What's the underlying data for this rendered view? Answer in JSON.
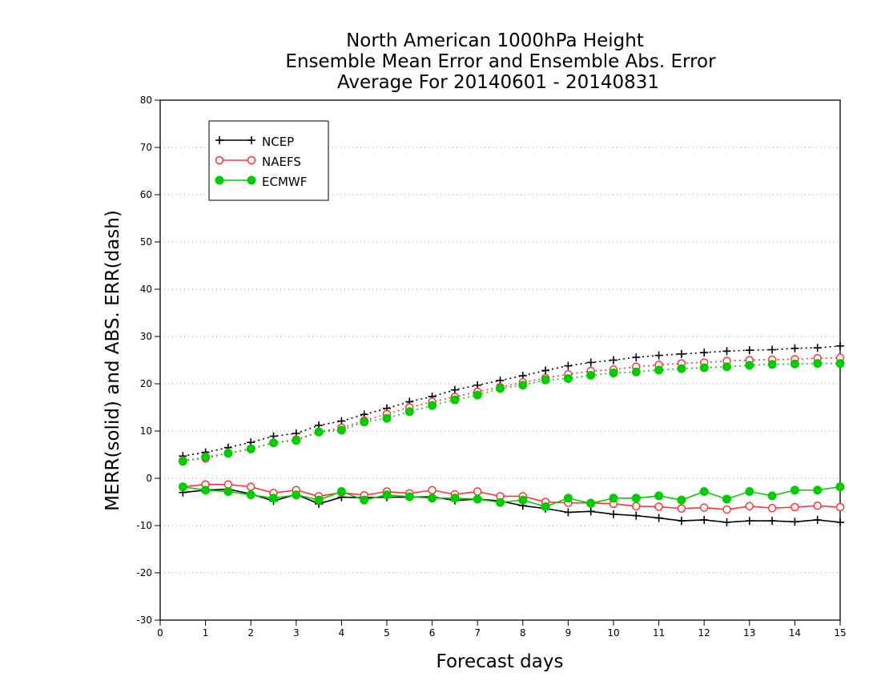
{
  "chart_data": {
    "type": "line",
    "title": [
      "North American 1000hPa Height",
      "Ensemble Mean Error and Ensemble Abs. Error",
      "Average For 20140601 - 20140831"
    ],
    "xlabel": "Forecast days",
    "ylabel": "MERR(solid) and ABS. ERR(dash)",
    "xlim": [
      0,
      15
    ],
    "ylim": [
      -30,
      80
    ],
    "x_ticks": [
      "0",
      "1",
      "2",
      "3",
      "4",
      "5",
      "6",
      "7",
      "8",
      "9",
      "10",
      "11",
      "12",
      "13",
      "14",
      "15"
    ],
    "y_ticks": [
      "80",
      "70",
      "60",
      "50",
      "40",
      "30",
      "20",
      "10",
      "0",
      "-10",
      "-20",
      "-30"
    ],
    "grid": "horizontal dotted",
    "legend_position": "top-left",
    "x": [
      0.5,
      1,
      1.5,
      2,
      2.5,
      3,
      3.5,
      4,
      4.5,
      5,
      5.5,
      6,
      6.5,
      7,
      7.5,
      8,
      8.5,
      9,
      9.5,
      10,
      10.5,
      11,
      11.5,
      12,
      12.5,
      13,
      13.5,
      14,
      14.5,
      15
    ],
    "series": [
      {
        "name": "NCEP",
        "color": "#000000",
        "marker": "plus",
        "merr": [
          -3,
          -2.5,
          -2.3,
          -3.3,
          -4.8,
          -3.4,
          -5.4,
          -4,
          -4.1,
          -4,
          -4,
          -3.9,
          -4.7,
          -4.4,
          -4.8,
          -5.8,
          -6.4,
          -7.2,
          -7,
          -7.6,
          -7.9,
          -8.4,
          -9,
          -8.8,
          -9.3,
          -9,
          -9,
          -9.2,
          -8.8,
          -9.3
        ],
        "abs_err": [
          4.7,
          5.5,
          6.5,
          7.6,
          8.9,
          9.5,
          11.2,
          12.1,
          13.5,
          14.8,
          16.2,
          17.3,
          18.7,
          19.7,
          20.7,
          21.7,
          22.8,
          23.8,
          24.5,
          25,
          25.6,
          26,
          26.3,
          26.6,
          26.9,
          27.1,
          27.2,
          27.5,
          27.6,
          28
        ]
      },
      {
        "name": "NAEFS",
        "color": "#ff3333",
        "marker": "open-circle",
        "merr": [
          -1.8,
          -1.3,
          -1.3,
          -1.8,
          -3.1,
          -2.5,
          -3.8,
          -3,
          -3.6,
          -2.8,
          -3.2,
          -2.5,
          -3.4,
          -2.8,
          -3.8,
          -3.8,
          -5,
          -5.2,
          -5.2,
          -5.4,
          -5.9,
          -6,
          -6.4,
          -6.2,
          -6.6,
          -5.9,
          -6.3,
          -6.1,
          -5.8,
          -6.1
        ],
        "abs_err": [
          3.8,
          4.2,
          5.3,
          6.3,
          7.5,
          8.2,
          9.8,
          10.7,
          12.2,
          13.6,
          15,
          16.2,
          17.2,
          18.3,
          19.3,
          20.3,
          21.2,
          22,
          22.7,
          23,
          23.6,
          24,
          24.3,
          24.5,
          24.8,
          25,
          25.1,
          25.2,
          25.4,
          25.5
        ]
      },
      {
        "name": "ECMWF",
        "color": "#00cc00",
        "marker": "filled-circle",
        "merr": [
          -1.8,
          -2.5,
          -2.8,
          -3.5,
          -4.2,
          -3.5,
          -4.6,
          -2.8,
          -4.6,
          -3.5,
          -3.9,
          -4.2,
          -4.2,
          -4.4,
          -5.1,
          -4.6,
          -6,
          -4.2,
          -5.3,
          -4.2,
          -4.2,
          -3.7,
          -4.6,
          -2.8,
          -4.4,
          -2.8,
          -3.7,
          -2.5,
          -2.5,
          -1.8
        ],
        "abs_err": [
          3.6,
          4.5,
          5.3,
          6.2,
          7.5,
          8,
          9.8,
          10.2,
          11.9,
          12.7,
          14.1,
          15.4,
          16.6,
          17.6,
          19,
          19.7,
          20.8,
          21.1,
          21.8,
          22.3,
          22.5,
          22.9,
          23.2,
          23.4,
          23.6,
          23.9,
          24.1,
          24.2,
          24.3,
          24.3
        ]
      }
    ]
  }
}
